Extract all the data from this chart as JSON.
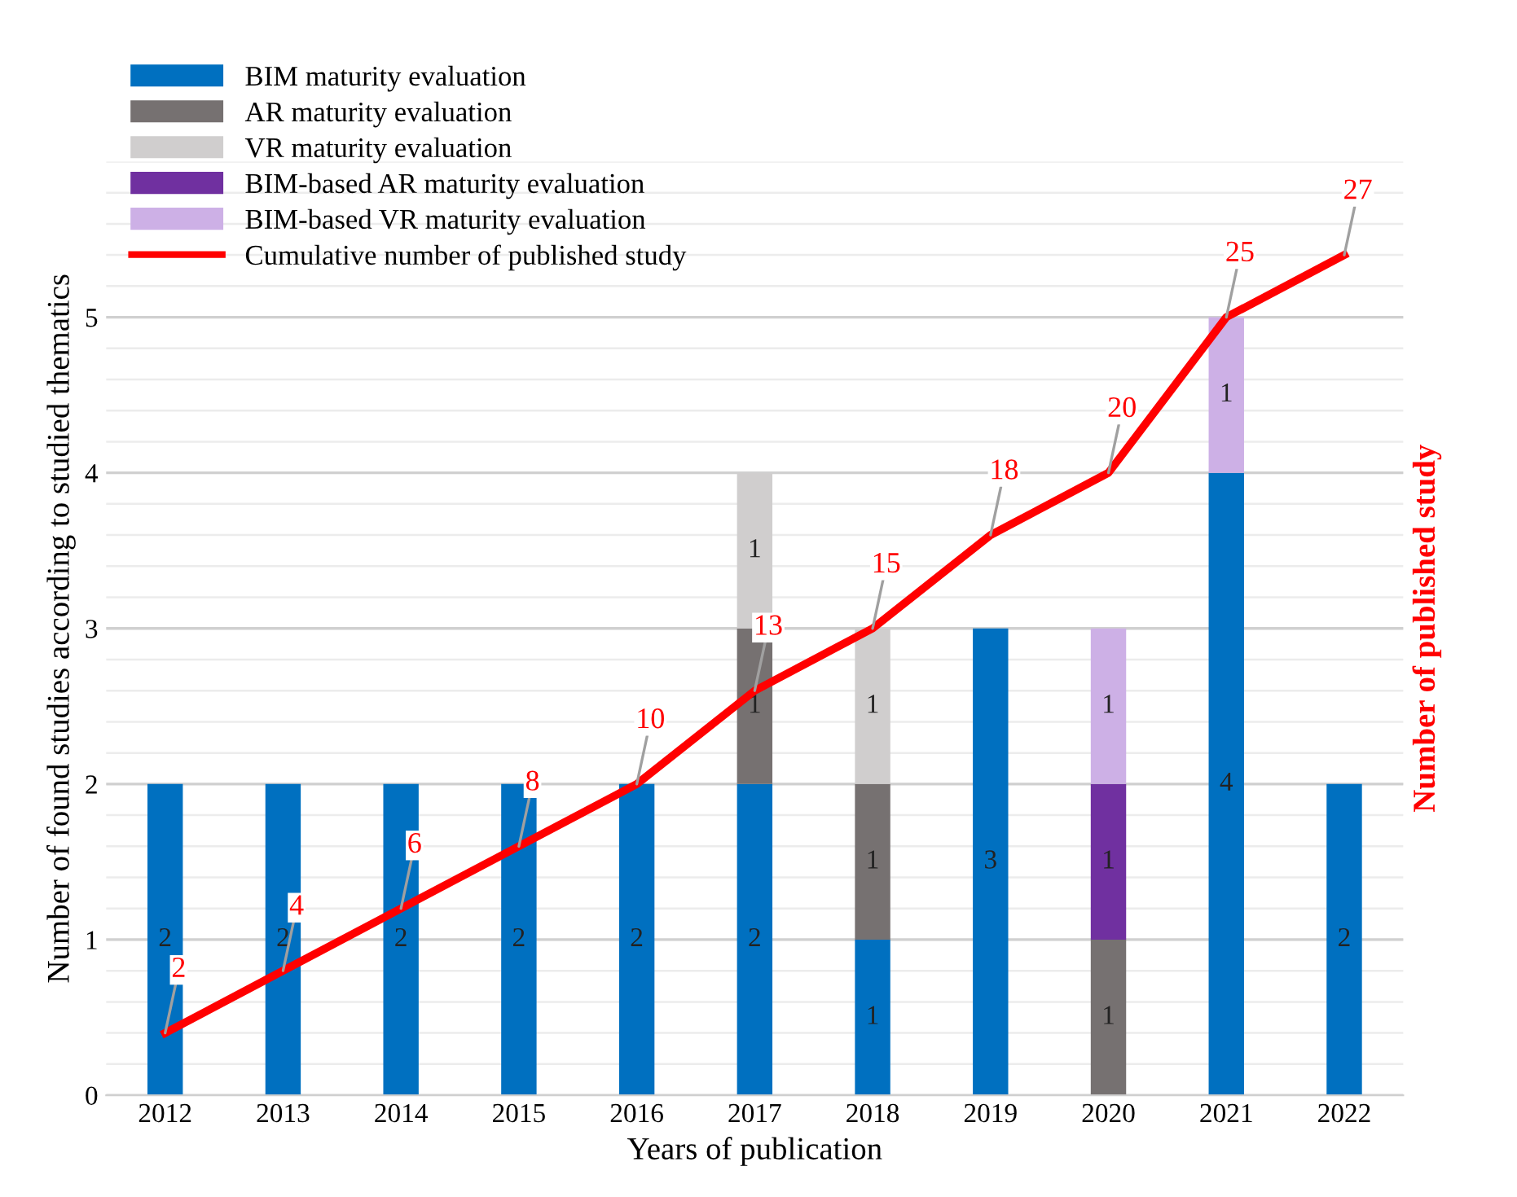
{
  "chart_data": {
    "type": "bar",
    "stacked": true,
    "xlabel": "Years of publication",
    "ylabel": "Number of found studies according to studied thematics",
    "y2label": "Number of published study",
    "categories": [
      "2012",
      "2013",
      "2014",
      "2015",
      "2016",
      "2017",
      "2018",
      "2019",
      "2020",
      "2021",
      "2022"
    ],
    "series": [
      {
        "name": "BIM maturity evaluation",
        "color": "#0070c0",
        "values": [
          2,
          2,
          2,
          2,
          2,
          2,
          1,
          3,
          null,
          4,
          2
        ]
      },
      {
        "name": "AR maturity evaluation",
        "color": "#767171",
        "values": [
          null,
          null,
          null,
          null,
          null,
          1,
          1,
          null,
          1,
          null,
          null
        ]
      },
      {
        "name": "VR maturity evaluation",
        "color": "#d0cece",
        "values": [
          null,
          null,
          null,
          null,
          null,
          1,
          1,
          null,
          null,
          null,
          null
        ]
      },
      {
        "name": "BIM-based AR maturity evaluation",
        "color": "#7030a0",
        "values": [
          null,
          null,
          null,
          null,
          null,
          null,
          null,
          null,
          1,
          null,
          null
        ]
      },
      {
        "name": "BIM-based VR maturity evaluation",
        "color": "#cdb0e6",
        "values": [
          null,
          null,
          null,
          null,
          null,
          null,
          null,
          null,
          1,
          1,
          null
        ]
      },
      {
        "name": "Cumulative number of published study",
        "type": "line",
        "axis": "y2",
        "color": "#ff0000",
        "values": [
          2,
          4,
          6,
          8,
          10,
          13,
          15,
          18,
          20,
          25,
          27
        ]
      }
    ],
    "ylim": [
      0,
      6
    ],
    "yticks": [
      0,
      1,
      2,
      3,
      4,
      5
    ],
    "y2lim": [
      0,
      30
    ],
    "y2ticks": [
      {
        "value": 0,
        "label": null
      },
      {
        "value": 1,
        "label": null
      },
      {
        "value": 2,
        "label": null
      },
      {
        "value": 3,
        "label": null
      },
      {
        "value": 4,
        "label": null
      },
      {
        "value": 5,
        "label": null
      },
      {
        "value": 6,
        "label": null
      },
      {
        "value": 7,
        "label": null
      },
      {
        "value": 8,
        "label": null
      },
      {
        "value": 9,
        "label": null
      },
      {
        "value": 10,
        "label": null
      },
      {
        "value": 11,
        "label": null
      },
      {
        "value": 12,
        "label": null
      },
      {
        "value": 13,
        "label": null
      },
      {
        "value": 14,
        "label": null
      },
      {
        "value": 15,
        "label": null
      },
      {
        "value": 16,
        "label": null
      },
      {
        "value": 17,
        "label": null
      },
      {
        "value": 18,
        "label": null
      },
      {
        "value": 19,
        "label": null
      },
      {
        "value": 20,
        "label": null
      },
      {
        "value": 21,
        "label": null
      },
      {
        "value": 22,
        "label": null
      },
      {
        "value": 23,
        "label": null
      },
      {
        "value": 24,
        "label": null
      },
      {
        "value": 25,
        "label": null
      },
      {
        "value": 26,
        "label": null
      },
      {
        "value": 27,
        "label": null
      },
      {
        "value": 28,
        "label": null
      },
      {
        "value": 29,
        "label": null
      },
      {
        "value": 30,
        "label": null
      }
    ],
    "grid": true,
    "legend": "top left",
    "data_labels": true,
    "marker": "none",
    "line_style": "solid",
    "tick_labels": [
      "x",
      "y"
    ]
  }
}
